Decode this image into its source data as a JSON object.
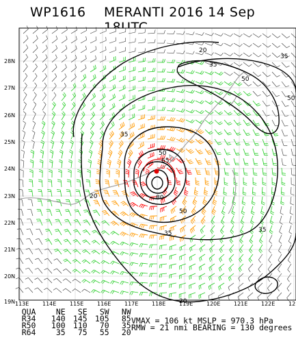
{
  "header": {
    "storm_id": "WP1616",
    "storm_title": "MERANTI 2016 14 Sep 18UTC"
  },
  "map": {
    "lat_labels": [
      "28N",
      "27N",
      "26N",
      "25N",
      "24N",
      "23N",
      "22N",
      "21N",
      "20N",
      "19N"
    ],
    "lon_labels": [
      "113E",
      "114E",
      "115E",
      "116E",
      "117E",
      "118E",
      "119E",
      "120E",
      "121E",
      "122E",
      "12"
    ],
    "contour_labels": [
      "20",
      "35",
      "50",
      "35",
      "50",
      "65",
      "80",
      "50",
      "35",
      "20",
      "35",
      "20",
      "50",
      "35"
    ],
    "legend_colors": {
      "r34": "#22cc22",
      "r50": "#ff9900",
      "r64": "#ff0000",
      "contours": "#000000",
      "coast": "#999999",
      "grid": "#cccccc"
    }
  },
  "radii_table": {
    "header": [
      "QUA",
      "NE",
      "SE",
      "SW",
      "NW"
    ],
    "rows": [
      [
        "R34",
        "140",
        "145",
        "105",
        "85"
      ],
      [
        "R50",
        "100",
        "110",
        "70",
        "35"
      ],
      [
        "R64",
        "35",
        "75",
        "55",
        "20"
      ]
    ]
  },
  "stats": {
    "vmax_label": "VMAX =",
    "vmax_value": "106 kt",
    "mslp_label": "MSLP =",
    "mslp_value": "970.3 hPa",
    "rmw_label": "RMW =",
    "rmw_value": "21 nmi",
    "bearing_label": "BEARING =",
    "bearing_value": "130 degrees"
  }
}
